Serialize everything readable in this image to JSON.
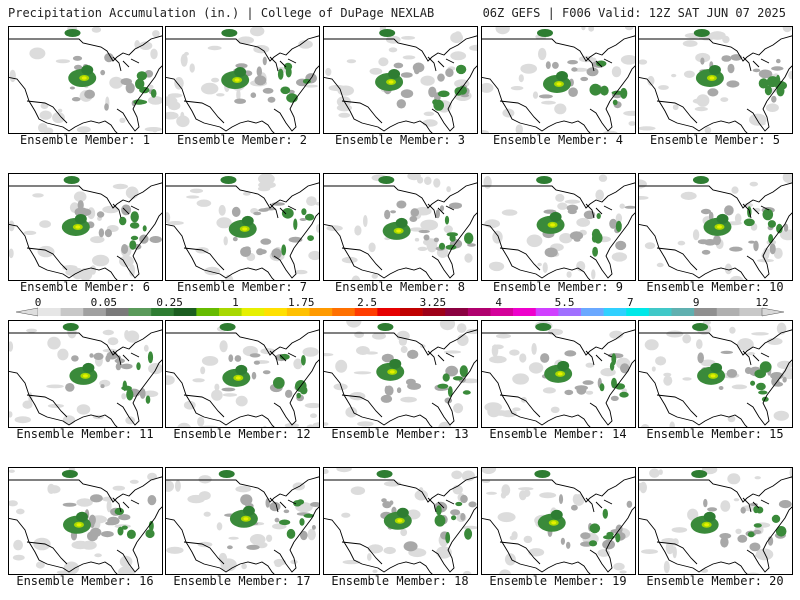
{
  "header": {
    "left_title": "Precipitation Accumulation (in.) | College of DuPage NEXLAB",
    "right_title": "06Z GEFS | F006 Valid: 12Z SAT JUN 07 2025"
  },
  "panels": [
    {
      "label": "Ensemble Member: 1"
    },
    {
      "label": "Ensemble Member: 2"
    },
    {
      "label": "Ensemble Member: 3"
    },
    {
      "label": "Ensemble Member: 4"
    },
    {
      "label": "Ensemble Member: 5"
    },
    {
      "label": "Ensemble Member: 6"
    },
    {
      "label": "Ensemble Member: 7"
    },
    {
      "label": "Ensemble Member: 8"
    },
    {
      "label": "Ensemble Member: 9"
    },
    {
      "label": "Ensemble Member: 10"
    },
    {
      "label": "Ensemble Member: 11"
    },
    {
      "label": "Ensemble Member: 12"
    },
    {
      "label": "Ensemble Member: 13"
    },
    {
      "label": "Ensemble Member: 14"
    },
    {
      "label": "Ensemble Member: 15"
    },
    {
      "label": "Ensemble Member: 16"
    },
    {
      "label": "Ensemble Member: 17"
    },
    {
      "label": "Ensemble Member: 18"
    },
    {
      "label": "Ensemble Member: 19"
    },
    {
      "label": "Ensemble Member: 20"
    }
  ],
  "colorbar": {
    "labels": [
      "0",
      "0.05",
      "0.25",
      "1",
      "1.75",
      "2.5",
      "3.25",
      "4",
      "5.5",
      "7",
      "9",
      "12"
    ],
    "colors": [
      "#e6e6e6",
      "#c8c8c8",
      "#a0a0a0",
      "#7a7a7a",
      "#5a9a5a",
      "#2e7d32",
      "#1b5e20",
      "#66bb00",
      "#a8d800",
      "#e6f000",
      "#ffe000",
      "#ffc000",
      "#ff9a00",
      "#ff7000",
      "#ff3c00",
      "#e60000",
      "#c00000",
      "#9e0018",
      "#8a0040",
      "#b0006e",
      "#d4009a",
      "#ee00cc",
      "#d040ff",
      "#a070ff",
      "#6aa8ff",
      "#30d0ff",
      "#00e8e8",
      "#40c8c8",
      "#60b0b0",
      "#909090",
      "#b0b0b0",
      "#c8c8c8"
    ]
  }
}
